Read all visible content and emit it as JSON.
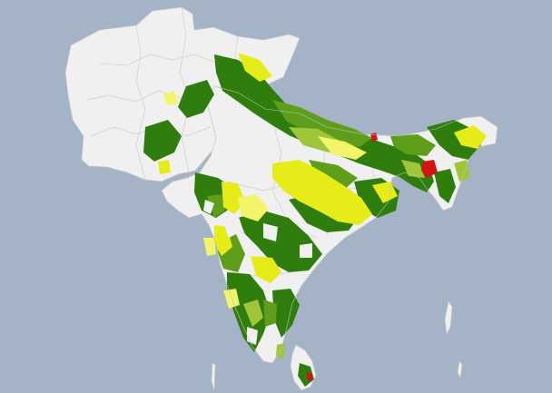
{
  "map": {
    "colors": {
      "ocean": "#a4b3c6",
      "land_nodata": "#f0f0f0",
      "border": "#c8c8c8",
      "dark_green": "#2f7d0c",
      "mid_green": "#5f9e1a",
      "light_green": "#9fc63a",
      "yellow": "#e6ec17",
      "pale_yellow": "#f2f56a",
      "red": "#d21414"
    },
    "legend_classes": [
      "dark_green",
      "mid_green",
      "light_green",
      "yellow",
      "pale_yellow",
      "red"
    ]
  }
}
